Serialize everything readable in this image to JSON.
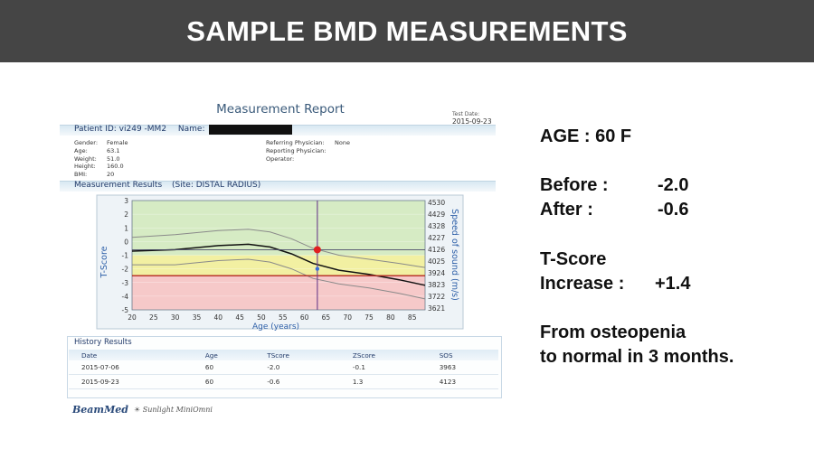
{
  "banner": {
    "title": "SAMPLE BMD MEASUREMENTS"
  },
  "report": {
    "title": "Measurement Report",
    "test_date_label": "Test Date:",
    "test_date": "2015-09-23",
    "patient_id": "Patient ID: vi249 -MM2",
    "name_label": "Name:",
    "fields_left": [
      {
        "label": "Gender:",
        "value": "Female"
      },
      {
        "label": "Age:",
        "value": "63.1"
      },
      {
        "label": "Weight:",
        "value": "51.0"
      },
      {
        "label": "Height:",
        "value": "160.0"
      },
      {
        "label": "BMI:",
        "value": "20"
      }
    ],
    "fields_right": [
      {
        "label": "Referring Physician:",
        "value": ""
      },
      {
        "label": "Reporting Physician:",
        "value": "None"
      },
      {
        "label": "Operator:",
        "value": ""
      }
    ],
    "section_title": "Measurement Results",
    "site": "(Site: DISTAL RADIUS)",
    "history": {
      "title": "History Results",
      "headers": [
        "Date",
        "Age",
        "TScore",
        "ZScore",
        "SOS"
      ],
      "rows": [
        [
          "2015-07-06",
          "60",
          "-2.0",
          "-0.1",
          "3963"
        ],
        [
          "2015-09-23",
          "60",
          "-0.6",
          "1.3",
          "4123"
        ]
      ]
    },
    "brand": "BeamMed",
    "product": "Sunlight MiniOmni"
  },
  "chart_data": {
    "type": "line",
    "xlabel": "Age (years)",
    "ylabel": "T-Score",
    "y2label": "Speed of sound (m/s)",
    "xlim": [
      20,
      88
    ],
    "ylim": [
      -5,
      3
    ],
    "x_ticks": [
      20,
      25,
      30,
      35,
      40,
      45,
      50,
      55,
      60,
      65,
      70,
      75,
      80,
      85
    ],
    "y_ticks": [
      3,
      2,
      1,
      0,
      -1,
      -2,
      -3,
      -4,
      -5
    ],
    "y2_ticks": [
      4530,
      4429,
      4328,
      4227,
      4126,
      4025,
      3924,
      3823,
      3722,
      3621
    ],
    "bands": [
      {
        "name": "normal",
        "from": -1,
        "to": 3,
        "color": "#d6ebc4"
      },
      {
        "name": "osteopenia",
        "from": -2.5,
        "to": -1,
        "color": "#f2f0a2"
      },
      {
        "name": "osteoporosis",
        "from": -5,
        "to": -2.5,
        "color": "#f6c9c9"
      }
    ],
    "series": [
      {
        "role": "mean",
        "color": "#111111",
        "x": [
          20,
          30,
          40,
          47,
          52,
          57,
          62,
          68,
          75,
          82,
          88
        ],
        "y": [
          -0.7,
          -0.6,
          -0.3,
          -0.2,
          -0.4,
          -0.9,
          -1.6,
          -2.1,
          -2.4,
          -2.8,
          -3.2
        ]
      },
      {
        "role": "upper",
        "color": "#8a8a8a",
        "x": [
          20,
          30,
          40,
          47,
          52,
          57,
          62,
          68,
          75,
          82,
          88
        ],
        "y": [
          0.3,
          0.5,
          0.8,
          0.9,
          0.7,
          0.2,
          -0.5,
          -1.0,
          -1.3,
          -1.6,
          -1.9
        ]
      },
      {
        "role": "lower",
        "color": "#8a8a8a",
        "x": [
          20,
          30,
          40,
          47,
          52,
          57,
          62,
          68,
          75,
          82,
          88
        ],
        "y": [
          -1.7,
          -1.7,
          -1.4,
          -1.3,
          -1.5,
          -2.0,
          -2.7,
          -3.1,
          -3.4,
          -3.8,
          -4.2
        ]
      }
    ],
    "reference_lines": {
      "x_age": 63,
      "t_score": -0.6
    },
    "threshold_line": {
      "y": -2.5,
      "color": "#b3261e"
    },
    "points": [
      {
        "x": 63,
        "y": -0.6,
        "color": "#e02020"
      },
      {
        "x": 63,
        "y": -2.0,
        "color": "#3a6ed8"
      }
    ]
  },
  "facts": {
    "age": "AGE : 60 F",
    "before_label": "Before :",
    "before_value": "-2.0",
    "after_label": "After    :",
    "after_value": "-0.6",
    "tscore_label": "T-Score",
    "increase_label": "Increase :",
    "increase_value": "+1.4",
    "conclusion_1": "From osteopenia",
    "conclusion_2": "to normal in 3 months."
  }
}
